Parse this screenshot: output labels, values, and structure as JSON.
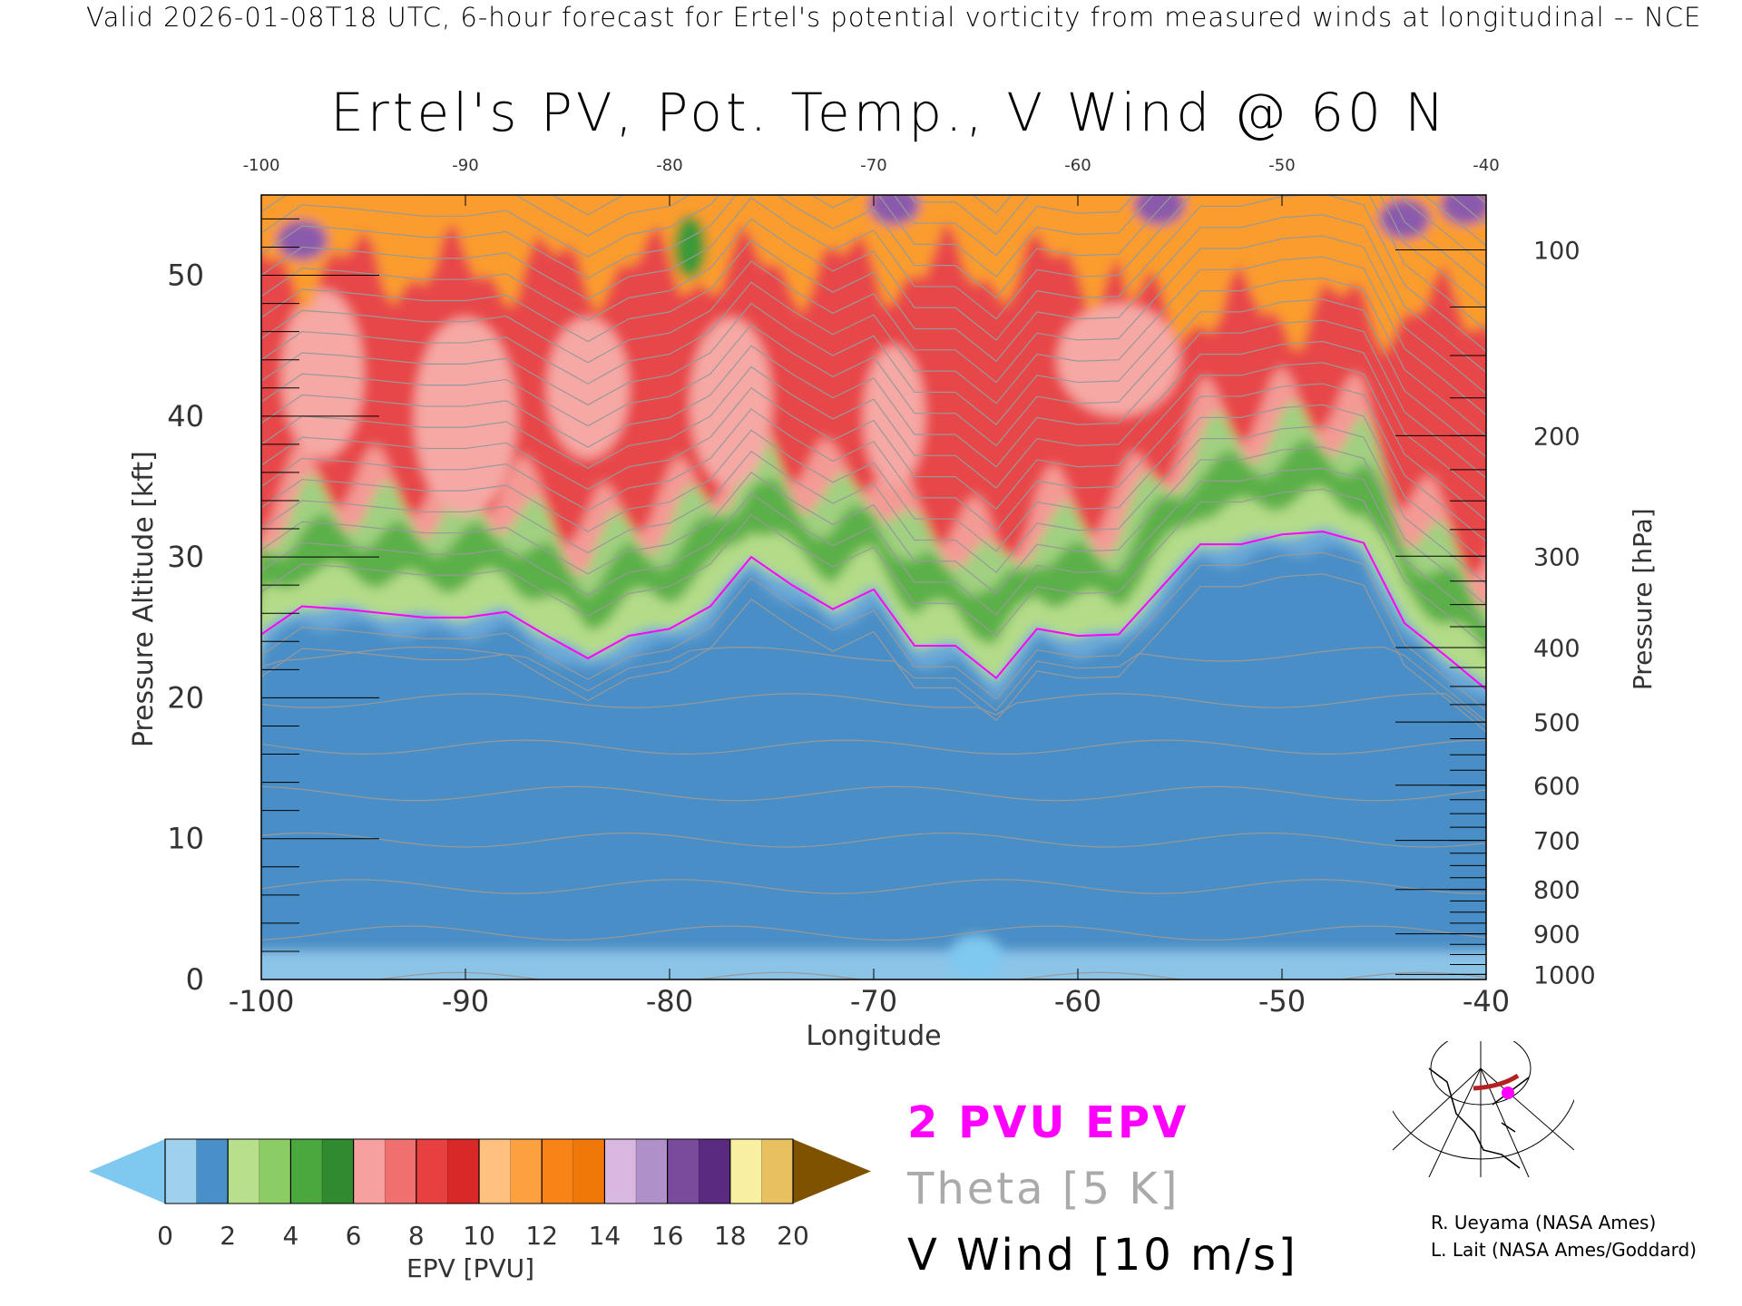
{
  "header": {
    "topline": "Valid 2026-01-08T18 UTC, 6-hour forecast for Ertel's potential vorticity from measured winds at longitudinal -- NCE",
    "title": "Ertel's PV, Pot. Temp., V Wind @ 60 N"
  },
  "chart_data": {
    "type": "heatmap",
    "title": "Ertel's PV, Pot. Temp., V Wind @ 60 N",
    "xlabel": "Longitude",
    "ylabel": "Pressure Altitude [kft]",
    "y2label": "Pressure [hPa]",
    "xlim": [
      -100,
      -40
    ],
    "ylim": [
      0,
      55.7
    ],
    "x_ticks": [
      "-100",
      "-90",
      "-80",
      "-70",
      "-60",
      "-50",
      "-40"
    ],
    "x_tick_values": [
      -100,
      -90,
      -80,
      -70,
      -60,
      -50,
      -40
    ],
    "top_ticks": [
      "-100",
      "-90",
      "-80",
      "-70",
      "-60",
      "-50",
      "-40"
    ],
    "y_ticks": [
      "0",
      "10",
      "20",
      "30",
      "40",
      "50"
    ],
    "y_tick_values": [
      0,
      10,
      20,
      30,
      40,
      50
    ],
    "pressure_ticks": [
      "100",
      "200",
      "300",
      "400",
      "500",
      "600",
      "700",
      "800",
      "900",
      "1000"
    ],
    "pressure_tick_values": [
      100,
      200,
      300,
      400,
      500,
      600,
      700,
      800,
      900,
      1000
    ],
    "epv_2pvu_altitude_kft": {
      "lon": [
        -100,
        -98,
        -96,
        -94,
        -92,
        -90,
        -88,
        -86,
        -84,
        -82,
        -80,
        -78,
        -76,
        -74,
        -72,
        -70,
        -68,
        -66,
        -64,
        -62,
        -60,
        -58,
        -56,
        -54,
        -52,
        -50,
        -48,
        -46,
        -44,
        -42,
        -40
      ],
      "alt": [
        24.5,
        26.5,
        26.3,
        26.0,
        25.7,
        25.7,
        26.1,
        24.4,
        22.8,
        24.4,
        24.9,
        26.5,
        30.0,
        28.0,
        26.3,
        27.7,
        23.7,
        23.7,
        21.4,
        24.9,
        24.4,
        24.5,
        27.7,
        30.9,
        30.9,
        31.6,
        31.8,
        31.0,
        25.3,
        23.0,
        20.6
      ]
    },
    "theta_interval_K": 5,
    "colorbar": {
      "label": "EPV [PVU]",
      "ticks": [
        "0",
        "2",
        "4",
        "6",
        "8",
        "10",
        "12",
        "14",
        "16",
        "18",
        "20"
      ],
      "range": [
        0,
        20
      ],
      "colors": [
        "#9fd0ec",
        "#4a90c8",
        "#b8e08c",
        "#8ccc64",
        "#4aa83f",
        "#2f8a30",
        "#f7a0a0",
        "#f07070",
        "#e84040",
        "#d82828",
        "#ffc080",
        "#fca040",
        "#f88418",
        "#f07808",
        "#d8b8e0",
        "#b090c8",
        "#7a4a9c",
        "#5a2a80",
        "#f8f0a0",
        "#e8c060"
      ],
      "under_color": "#7fc8f0",
      "over_color": "#7f5200"
    },
    "legend": [
      "2 PVU EPV",
      "Theta [5 K]",
      "V Wind [10 m/s]"
    ],
    "colors": {
      "epv_2pvu": "#ff00ff",
      "theta": "#aaaaaa",
      "wind": "#000000"
    }
  },
  "credits": [
    "R. Ueyama (NASA Ames)",
    "L. Lait (NASA Ames/Goddard)"
  ]
}
